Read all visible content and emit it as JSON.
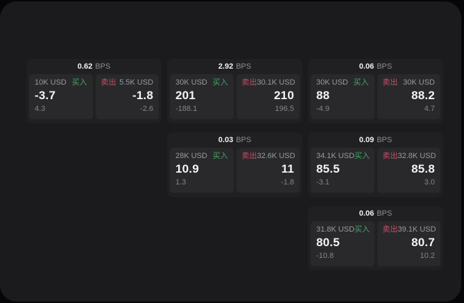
{
  "labels": {
    "buy": "买入",
    "sell": "卖出",
    "bps": "BPS"
  },
  "colors": {
    "buy_green": "#43a563",
    "sell_red": "#c15065",
    "value_white": "#f4f4f6",
    "label_gray": "#9a9a9e",
    "delta_gray": "#85858a",
    "panel_bg": "#1b1b1d",
    "card_bg": "#202023",
    "pane_bg": "#29292c",
    "page_bg": "#060607"
  },
  "cards": [
    {
      "bps": "0.62",
      "buy_amount": "10K USD",
      "buy_value": "-3.7",
      "buy_delta": "4.3",
      "sell_amount": "5.5K USD",
      "sell_value": "-1.8",
      "sell_delta": "-2.6"
    },
    {
      "bps": "2.92",
      "buy_amount": "30K USD",
      "buy_value": "201",
      "buy_delta": "-188.1",
      "sell_amount": "30.1K USD",
      "sell_value": "210",
      "sell_delta": "196.5"
    },
    {
      "bps": "0.06",
      "buy_amount": "30K USD",
      "buy_value": "88",
      "buy_delta": "-4.9",
      "sell_amount": "30K USD",
      "sell_value": "88.2",
      "sell_delta": "4.7"
    },
    {
      "bps": "0.03",
      "buy_amount": "28K USD",
      "buy_value": "10.9",
      "buy_delta": "1.3",
      "sell_amount": "32.6K USD",
      "sell_value": "11",
      "sell_delta": "-1.8"
    },
    {
      "bps": "0.09",
      "buy_amount": "34.1K USD",
      "buy_value": "85.5",
      "buy_delta": "-3.1",
      "sell_amount": "32.8K USD",
      "sell_value": "85.8",
      "sell_delta": "3.0"
    },
    {
      "bps": "0.06",
      "buy_amount": "31.8K USD",
      "buy_value": "80.5",
      "buy_delta": "-10.8",
      "sell_amount": "39.1K USD",
      "sell_value": "80.7",
      "sell_delta": "10.2"
    }
  ]
}
